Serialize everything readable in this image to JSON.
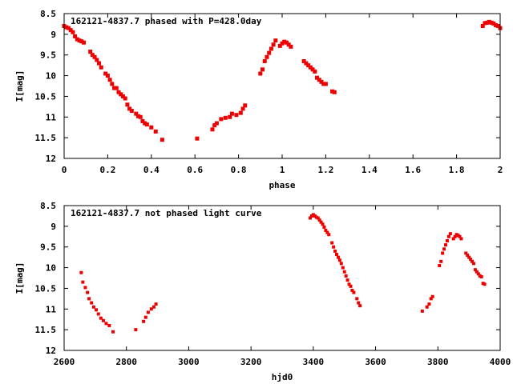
{
  "colors": {
    "points": "#ee0000",
    "frame": "#000000",
    "background": "#ffffff"
  },
  "chart_data": [
    {
      "type": "scatter",
      "title": "162121-4837.7 phased with P=428.0day",
      "xlabel": "phase",
      "ylabel": "I[mag]",
      "xlim": [
        0,
        2
      ],
      "ylim": [
        8.5,
        12
      ],
      "y_inverted": true,
      "grid": false,
      "x_ticks": [
        "0",
        "0.2",
        "0.4",
        "0.6",
        "0.8",
        "1",
        "1.2",
        "1.4",
        "1.6",
        "1.8",
        "2"
      ],
      "y_ticks": [
        "8.5",
        "9",
        "9.5",
        "10",
        "10.5",
        "11",
        "11.5",
        "12"
      ],
      "series": [
        {
          "points": [
            [
              0.0,
              8.8
            ],
            [
              0.01,
              8.83
            ],
            [
              0.02,
              8.85
            ],
            [
              0.03,
              8.9
            ],
            [
              0.04,
              8.95
            ],
            [
              0.05,
              9.05
            ],
            [
              0.06,
              9.12
            ],
            [
              0.07,
              9.15
            ],
            [
              0.08,
              9.17
            ],
            [
              0.09,
              9.2
            ],
            [
              0.12,
              9.42
            ],
            [
              0.13,
              9.5
            ],
            [
              0.14,
              9.55
            ],
            [
              0.15,
              9.62
            ],
            [
              0.16,
              9.7
            ],
            [
              0.17,
              9.8
            ],
            [
              0.19,
              9.95
            ],
            [
              0.2,
              10.0
            ],
            [
              0.21,
              10.1
            ],
            [
              0.22,
              10.2
            ],
            [
              0.23,
              10.3
            ],
            [
              0.24,
              10.3
            ],
            [
              0.25,
              10.4
            ],
            [
              0.26,
              10.45
            ],
            [
              0.27,
              10.5
            ],
            [
              0.28,
              10.55
            ],
            [
              0.29,
              10.7
            ],
            [
              0.3,
              10.8
            ],
            [
              0.31,
              10.85
            ],
            [
              0.33,
              10.92
            ],
            [
              0.34,
              10.98
            ],
            [
              0.35,
              11.0
            ],
            [
              0.36,
              11.1
            ],
            [
              0.37,
              11.15
            ],
            [
              0.38,
              11.18
            ],
            [
              0.4,
              11.25
            ],
            [
              0.42,
              11.35
            ],
            [
              0.45,
              11.55
            ],
            [
              0.61,
              11.52
            ],
            [
              0.68,
              11.3
            ],
            [
              0.69,
              11.2
            ],
            [
              0.7,
              11.15
            ],
            [
              0.72,
              11.05
            ],
            [
              0.74,
              11.02
            ],
            [
              0.76,
              11.0
            ],
            [
              0.77,
              10.92
            ],
            [
              0.79,
              10.95
            ],
            [
              0.81,
              10.9
            ],
            [
              0.82,
              10.8
            ],
            [
              0.83,
              10.72
            ],
            [
              0.9,
              9.95
            ],
            [
              0.91,
              9.85
            ],
            [
              0.92,
              9.65
            ],
            [
              0.93,
              9.55
            ],
            [
              0.94,
              9.45
            ],
            [
              0.95,
              9.35
            ],
            [
              0.96,
              9.25
            ],
            [
              0.97,
              9.15
            ],
            [
              0.99,
              9.28
            ],
            [
              1.0,
              9.22
            ],
            [
              1.01,
              9.18
            ],
            [
              1.02,
              9.2
            ],
            [
              1.03,
              9.25
            ],
            [
              1.04,
              9.3
            ],
            [
              1.1,
              9.65
            ],
            [
              1.11,
              9.7
            ],
            [
              1.12,
              9.75
            ],
            [
              1.13,
              9.8
            ],
            [
              1.14,
              9.85
            ],
            [
              1.15,
              9.9
            ],
            [
              1.16,
              10.05
            ],
            [
              1.17,
              10.1
            ],
            [
              1.18,
              10.15
            ],
            [
              1.19,
              10.2
            ],
            [
              1.2,
              10.2
            ],
            [
              1.23,
              10.38
            ],
            [
              1.24,
              10.4
            ],
            [
              1.92,
              8.8
            ],
            [
              1.93,
              8.73
            ],
            [
              1.94,
              8.72
            ],
            [
              1.95,
              8.7
            ],
            [
              1.96,
              8.72
            ],
            [
              1.97,
              8.74
            ],
            [
              1.98,
              8.78
            ],
            [
              1.99,
              8.8
            ],
            [
              2.0,
              8.85
            ]
          ]
        }
      ]
    },
    {
      "type": "scatter",
      "title": "162121-4837.7 not phased light curve",
      "xlabel": "hjd0",
      "ylabel": "I[mag]",
      "xlim": [
        2600,
        4000
      ],
      "ylim": [
        8.5,
        12
      ],
      "y_inverted": true,
      "grid": false,
      "x_ticks": [
        "2600",
        "2800",
        "3000",
        "3200",
        "3400",
        "3600",
        "3800",
        "4000"
      ],
      "y_ticks": [
        "8.5",
        "9",
        "9.5",
        "10",
        "10.5",
        "11",
        "11.5",
        "12"
      ],
      "series": [
        {
          "points": [
            [
              2655,
              10.12
            ],
            [
              2660,
              10.35
            ],
            [
              2668,
              10.48
            ],
            [
              2675,
              10.6
            ],
            [
              2680,
              10.75
            ],
            [
              2688,
              10.85
            ],
            [
              2695,
              10.95
            ],
            [
              2703,
              11.02
            ],
            [
              2710,
              11.12
            ],
            [
              2718,
              11.22
            ],
            [
              2726,
              11.28
            ],
            [
              2735,
              11.35
            ],
            [
              2745,
              11.4
            ],
            [
              2757,
              11.55
            ],
            [
              2830,
              11.5
            ],
            [
              2855,
              11.3
            ],
            [
              2862,
              11.2
            ],
            [
              2870,
              11.08
            ],
            [
              2880,
              11.0
            ],
            [
              2888,
              10.95
            ],
            [
              2895,
              10.88
            ],
            [
              3390,
              8.8
            ],
            [
              3395,
              8.75
            ],
            [
              3400,
              8.72
            ],
            [
              3405,
              8.75
            ],
            [
              3410,
              8.78
            ],
            [
              3415,
              8.8
            ],
            [
              3420,
              8.85
            ],
            [
              3425,
              8.9
            ],
            [
              3430,
              8.95
            ],
            [
              3435,
              9.02
            ],
            [
              3440,
              9.1
            ],
            [
              3445,
              9.15
            ],
            [
              3450,
              9.2
            ],
            [
              3460,
              9.4
            ],
            [
              3465,
              9.5
            ],
            [
              3470,
              9.6
            ],
            [
              3475,
              9.68
            ],
            [
              3480,
              9.75
            ],
            [
              3485,
              9.82
            ],
            [
              3490,
              9.9
            ],
            [
              3495,
              10.0
            ],
            [
              3500,
              10.1
            ],
            [
              3505,
              10.2
            ],
            [
              3510,
              10.3
            ],
            [
              3515,
              10.4
            ],
            [
              3520,
              10.45
            ],
            [
              3525,
              10.55
            ],
            [
              3530,
              10.6
            ],
            [
              3540,
              10.75
            ],
            [
              3545,
              10.85
            ],
            [
              3550,
              10.92
            ],
            [
              3750,
              11.05
            ],
            [
              3765,
              10.95
            ],
            [
              3772,
              10.88
            ],
            [
              3778,
              10.75
            ],
            [
              3783,
              10.7
            ],
            [
              3805,
              9.95
            ],
            [
              3810,
              9.85
            ],
            [
              3815,
              9.65
            ],
            [
              3820,
              9.55
            ],
            [
              3825,
              9.45
            ],
            [
              3830,
              9.35
            ],
            [
              3835,
              9.25
            ],
            [
              3840,
              9.18
            ],
            [
              3850,
              9.3
            ],
            [
              3855,
              9.25
            ],
            [
              3860,
              9.2
            ],
            [
              3865,
              9.22
            ],
            [
              3870,
              9.25
            ],
            [
              3875,
              9.3
            ],
            [
              3890,
              9.65
            ],
            [
              3895,
              9.7
            ],
            [
              3900,
              9.75
            ],
            [
              3905,
              9.8
            ],
            [
              3910,
              9.85
            ],
            [
              3915,
              9.9
            ],
            [
              3920,
              10.05
            ],
            [
              3925,
              10.1
            ],
            [
              3930,
              10.15
            ],
            [
              3935,
              10.2
            ],
            [
              3940,
              10.22
            ],
            [
              3945,
              10.38
            ],
            [
              3950,
              10.4
            ]
          ]
        }
      ]
    }
  ]
}
